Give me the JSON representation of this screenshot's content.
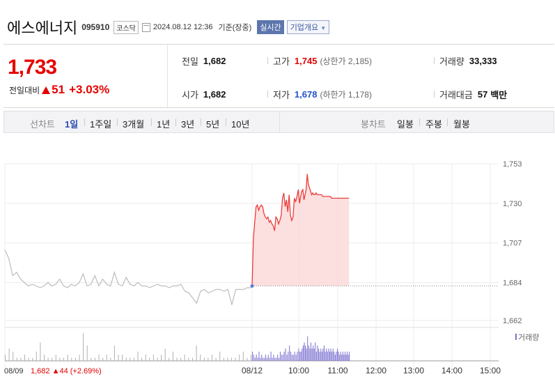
{
  "header": {
    "name": "에스에너지",
    "code": "095910",
    "market": "코스닥",
    "datetime": "2024.08.12 12:36",
    "basis": "기준(장중)",
    "realtime": "실시간",
    "company": "기업개요"
  },
  "quote": {
    "price": "1,733",
    "change_label": "전일대비",
    "change": "51",
    "change_pct": "+3.03%",
    "prev_label": "전일",
    "prev": "1,682",
    "open_label": "시가",
    "open": "1,682",
    "high_label": "고가",
    "high": "1,745",
    "upper_limit": "(상한가 2,185)",
    "low_label": "저가",
    "low": "1,678",
    "lower_limit": "(하한가 1,178)",
    "volume_label": "거래량",
    "volume": "33,333",
    "amount_label": "거래대금",
    "amount": "57",
    "amount_unit": "백만"
  },
  "tabs": {
    "line_label": "선차트",
    "line": [
      "1일",
      "1주일",
      "3개월",
      "1년",
      "3년",
      "5년",
      "10년"
    ],
    "candle_label": "봉차트",
    "candle": [
      "일봉",
      "주봉",
      "월봉"
    ]
  },
  "chart_data": {
    "type": "line",
    "y_ticks": [
      "1,753",
      "1,730",
      "1,707",
      "1,684",
      "1,662"
    ],
    "ylim": [
      1662,
      1753
    ],
    "x_ticks": [
      "08/12",
      "10:00",
      "11:00",
      "12:00",
      "13:00",
      "14:00",
      "15:00"
    ],
    "prev_day_label": "08/09",
    "prev_day_summary": "1,682 ▲44 (+2.69%)",
    "volume_legend": "거래량",
    "reference_price": 1682,
    "prev_day_series": [
      1703,
      1698,
      1688,
      1690,
      1686,
      1684,
      1682,
      1683,
      1682,
      1681,
      1682,
      1684,
      1682,
      1683,
      1686,
      1682,
      1681,
      1683,
      1682,
      1684,
      1689,
      1682,
      1683,
      1688,
      1682,
      1686,
      1683,
      1682,
      1690,
      1683,
      1682,
      1687,
      1683,
      1682,
      1684,
      1682,
      1682,
      1681,
      1682,
      1683,
      1682,
      1682,
      1681,
      1682,
      1682,
      1683,
      1679,
      1678,
      1675,
      1672,
      1679,
      1680,
      1678,
      1679,
      1680,
      1680,
      1679,
      1680,
      1671,
      1680,
      1680,
      1680,
      1681,
      1681
    ],
    "today_series": [
      1682,
      1710,
      1719,
      1728,
      1729,
      1726,
      1728,
      1729,
      1728,
      1724,
      1722,
      1721,
      1722,
      1719,
      1720,
      1718,
      1717,
      1714,
      1722,
      1721,
      1718,
      1720,
      1723,
      1733,
      1736,
      1728,
      1732,
      1725,
      1735,
      1723,
      1720,
      1722,
      1733,
      1731,
      1734,
      1738,
      1730,
      1734,
      1737,
      1738,
      1732,
      1735,
      1738,
      1747,
      1741,
      1739,
      1737,
      1735,
      1736,
      1735,
      1735,
      1736,
      1735,
      1735,
      1735,
      1735,
      1735,
      1734,
      1734,
      1734,
      1734,
      1734,
      1734,
      1734,
      1734,
      1733,
      1733,
      1733,
      1733,
      1733,
      1733,
      1733,
      1733,
      1733,
      1733,
      1733,
      1733,
      1733,
      1733,
      1733,
      1733,
      1733
    ],
    "prev_day_volume": [
      2,
      4,
      3,
      1,
      1,
      2,
      1,
      1,
      3,
      6,
      2,
      1,
      1,
      2,
      1,
      1,
      2,
      1,
      1,
      2,
      9,
      5,
      1,
      1,
      2,
      1,
      2,
      1,
      5,
      2,
      2,
      1,
      1,
      1,
      3,
      1,
      2,
      1,
      2,
      1,
      2,
      4,
      1,
      3,
      1,
      1,
      2,
      1,
      1,
      5,
      2,
      1,
      1,
      2,
      1,
      3,
      1,
      1,
      1,
      1,
      2,
      3,
      1,
      2
    ],
    "today_volume": [
      3,
      2,
      1,
      2,
      1,
      3,
      1,
      2,
      1,
      1,
      2,
      1,
      2,
      1,
      3,
      1,
      2,
      1,
      1,
      2,
      1,
      3,
      2,
      2,
      3,
      4,
      2,
      3,
      5,
      3,
      2,
      2,
      3,
      2,
      3,
      4,
      3,
      3,
      4,
      5,
      6,
      5,
      4,
      8,
      5,
      4,
      6,
      4,
      5,
      4,
      6,
      3,
      5,
      4,
      3,
      4,
      3,
      4,
      5,
      3,
      4,
      3,
      4,
      3,
      4,
      3,
      4,
      3,
      2,
      3,
      4,
      3,
      2,
      3,
      2,
      3,
      2,
      3,
      2,
      3,
      2,
      3
    ]
  }
}
